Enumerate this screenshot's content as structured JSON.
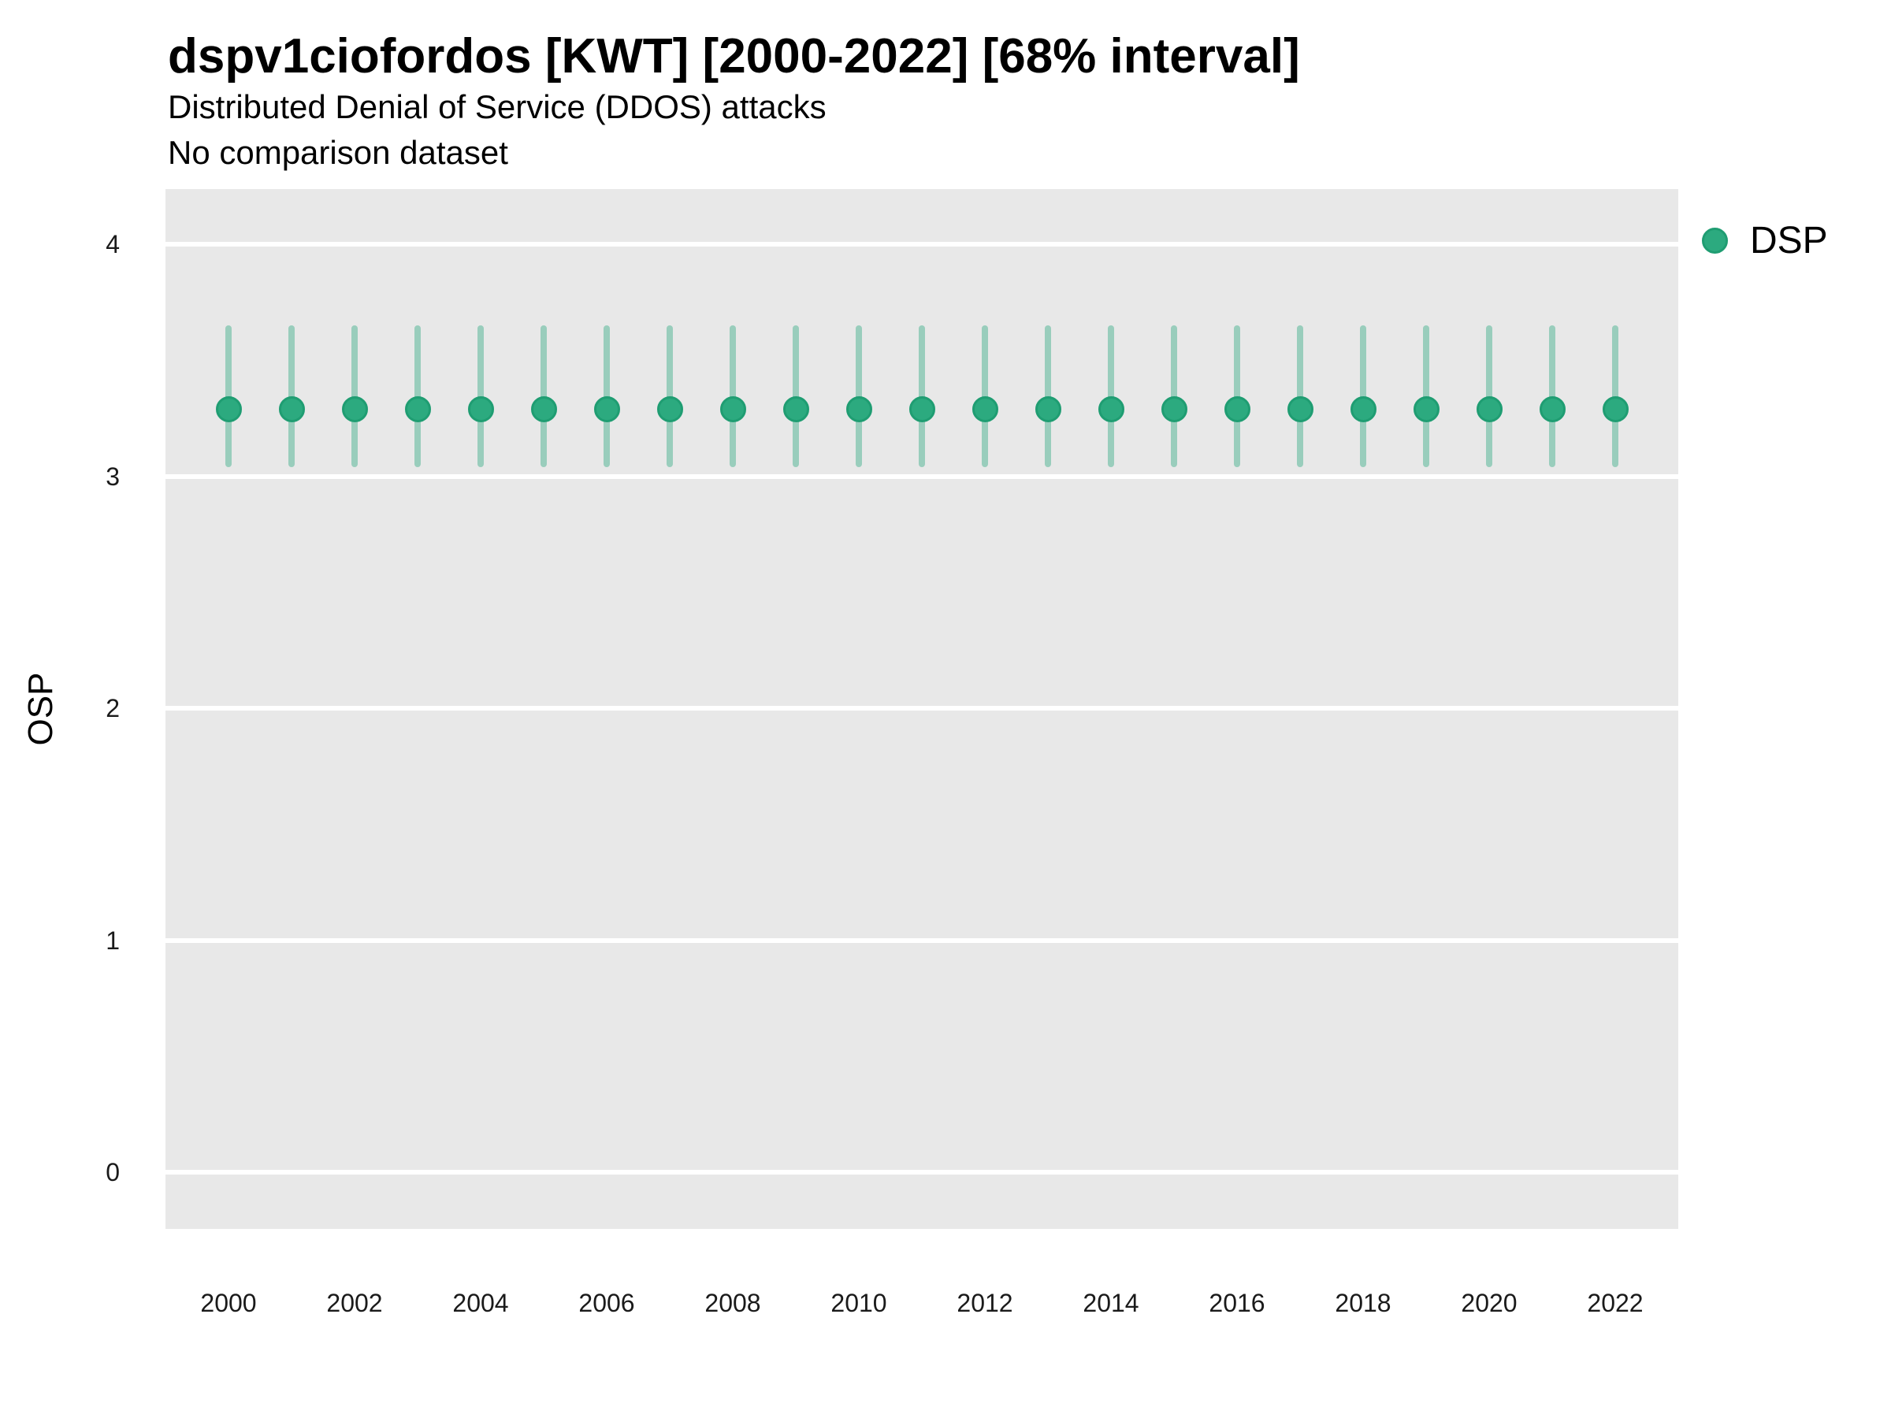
{
  "title": "dspv1ciofordos [KWT] [2000-2022] [68% interval]",
  "subtitle_line1": "Distributed Denial of Service (DDOS) attacks",
  "subtitle_line2": "No comparison dataset",
  "y_axis_title": "OSP",
  "legend": {
    "label": "DSP",
    "marker_color": "#2caa7f",
    "position": "top-right"
  },
  "colors": {
    "panel_background": "#e8e8e8",
    "gridline": "#ffffff",
    "point_fill": "#2caa7f",
    "point_border": "#1f9d72",
    "interval_bar": "rgba(42,168,126,0.42)",
    "text": "#000000",
    "axis_text": "#1a1a1a"
  },
  "chart_data": {
    "type": "scatter",
    "subtype": "pointrange-with-68pct-interval",
    "title": "dspv1ciofordos [KWT] [2000-2022] [68% interval]",
    "subtitle": "Distributed Denial of Service (DDOS) attacks / No comparison dataset",
    "xlabel": "",
    "ylabel": "OSP",
    "ylim": [
      0,
      4
    ],
    "yticks": [
      0,
      1,
      2,
      3,
      4
    ],
    "xticks": [
      2000,
      2002,
      2004,
      2006,
      2008,
      2010,
      2012,
      2014,
      2016,
      2018,
      2020,
      2022
    ],
    "grid": "horizontal-major-only",
    "legend_position": "top-right",
    "interval_level": "68%",
    "x": [
      2000,
      2001,
      2002,
      2003,
      2004,
      2005,
      2006,
      2007,
      2008,
      2009,
      2010,
      2011,
      2012,
      2013,
      2014,
      2015,
      2016,
      2017,
      2018,
      2019,
      2020,
      2021,
      2022
    ],
    "series": [
      {
        "name": "DSP",
        "mid": [
          3.29,
          3.29,
          3.29,
          3.29,
          3.29,
          3.29,
          3.29,
          3.29,
          3.29,
          3.29,
          3.29,
          3.29,
          3.29,
          3.29,
          3.29,
          3.29,
          3.29,
          3.29,
          3.29,
          3.29,
          3.29,
          3.29,
          3.29
        ],
        "lo": [
          3.04,
          3.04,
          3.04,
          3.04,
          3.04,
          3.04,
          3.04,
          3.04,
          3.04,
          3.04,
          3.04,
          3.04,
          3.04,
          3.04,
          3.04,
          3.04,
          3.04,
          3.04,
          3.04,
          3.04,
          3.04,
          3.04,
          3.04
        ],
        "hi": [
          3.65,
          3.65,
          3.65,
          3.65,
          3.65,
          3.65,
          3.65,
          3.65,
          3.65,
          3.65,
          3.65,
          3.65,
          3.65,
          3.65,
          3.65,
          3.65,
          3.65,
          3.65,
          3.65,
          3.65,
          3.65,
          3.65,
          3.65
        ]
      }
    ]
  }
}
